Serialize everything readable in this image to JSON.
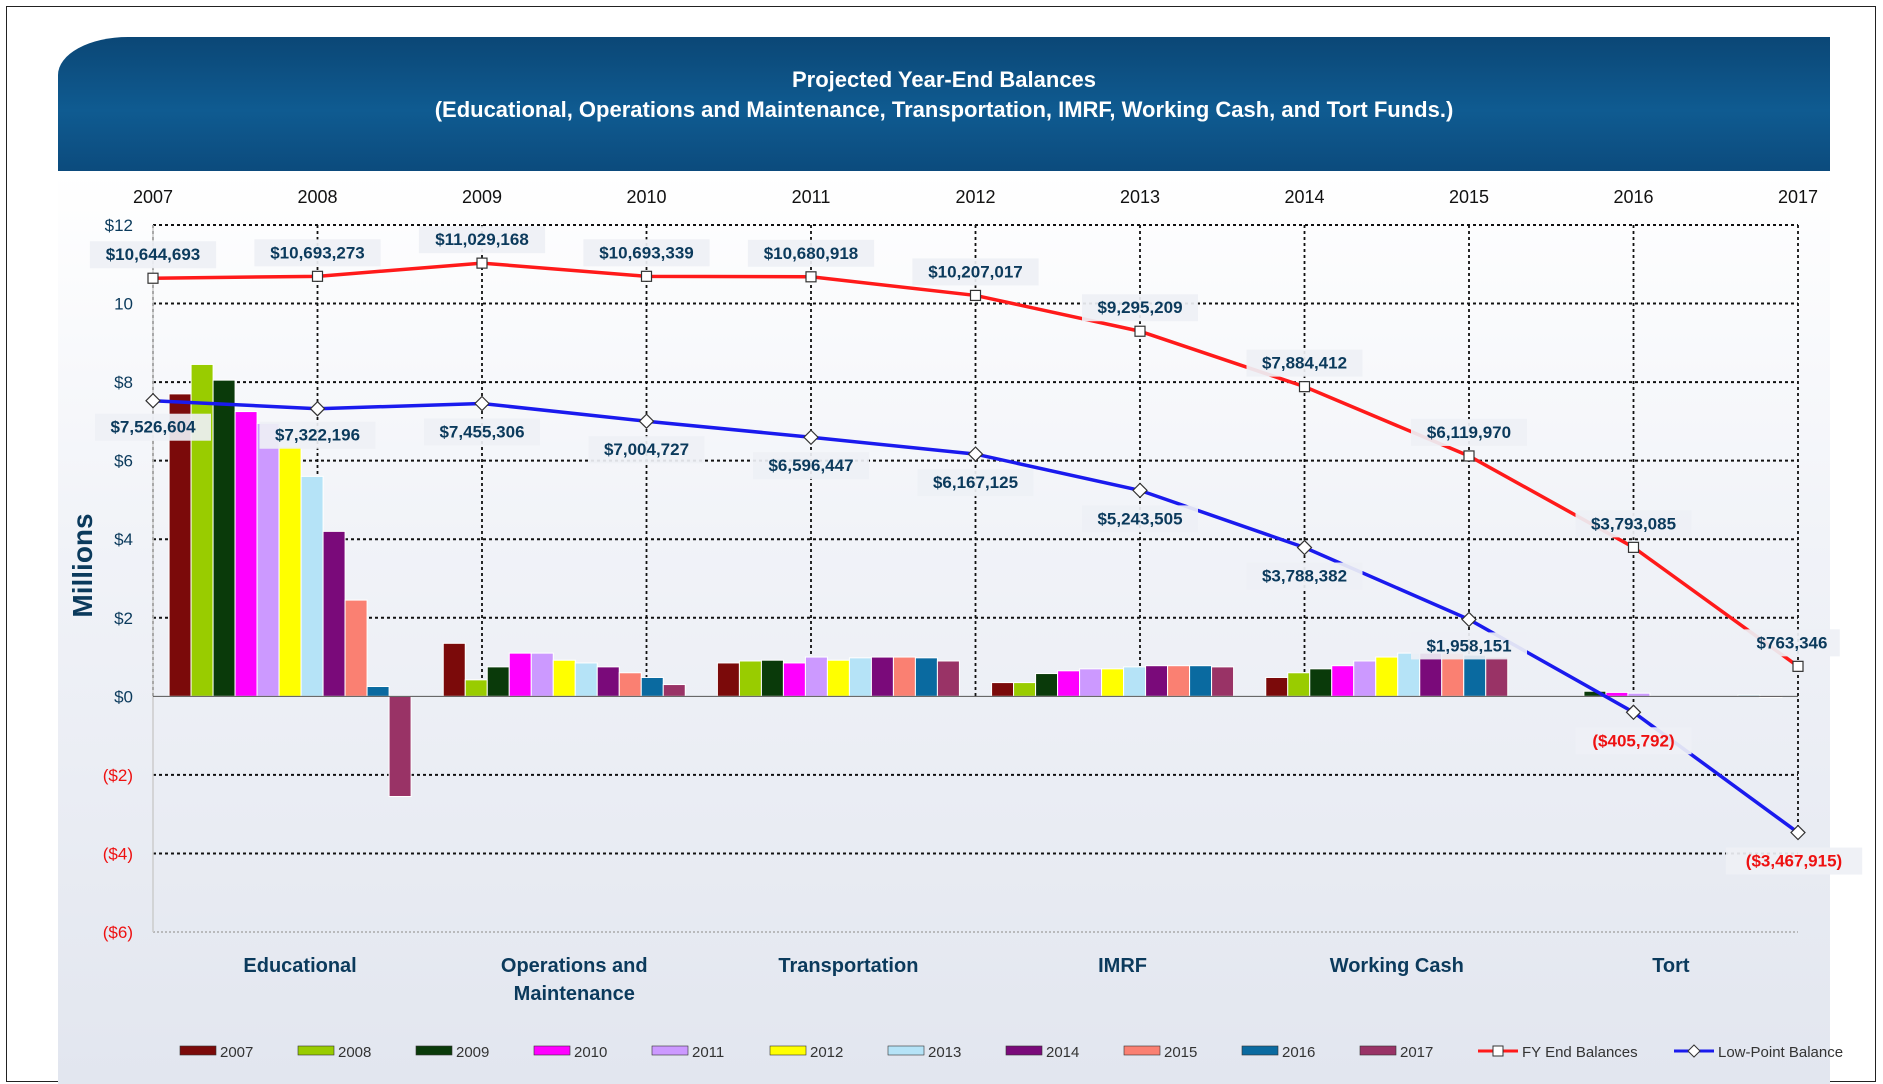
{
  "chart_data": {
    "type": "bar",
    "title": "Projected Year-End Balances",
    "subtitle": "(Educational, Operations and Maintenance, Transportation, IMRF, Working Cash, and Tort Funds.)",
    "ylabel": "Millions",
    "ylim": [
      -6,
      12
    ],
    "yticks": [
      {
        "value": 12,
        "label": "$12"
      },
      {
        "value": 10,
        "label": "10"
      },
      {
        "value": 8,
        "label": "$8"
      },
      {
        "value": 6,
        "label": "$6"
      },
      {
        "value": 4,
        "label": "$4"
      },
      {
        "value": 2,
        "label": "$2"
      },
      {
        "value": 0,
        "label": "$0"
      },
      {
        "value": -2,
        "label": "($2)"
      },
      {
        "value": -4,
        "label": "($4)"
      },
      {
        "value": -6,
        "label": "($6)"
      }
    ],
    "grid": true,
    "legend_position": "bottom",
    "categories": [
      {
        "label": "Educational"
      },
      {
        "label": "Operations and",
        "label2": "Maintenance"
      },
      {
        "label": "Transportation"
      },
      {
        "label": "IMRF"
      },
      {
        "label": "Working Cash"
      },
      {
        "label": "Tort"
      }
    ],
    "series": [
      {
        "name": "2007",
        "color": "#7b0a0a",
        "values": [
          7.7,
          1.35,
          0.85,
          0.35,
          0.48,
          0.0
        ]
      },
      {
        "name": "2008",
        "color": "#99cc00",
        "values": [
          8.45,
          0.42,
          0.9,
          0.35,
          0.6,
          0.0
        ]
      },
      {
        "name": "2009",
        "color": "#0a3a0a",
        "values": [
          8.05,
          0.75,
          0.92,
          0.58,
          0.7,
          0.13
        ]
      },
      {
        "name": "2010",
        "color": "#ff00ff",
        "values": [
          7.25,
          1.1,
          0.85,
          0.65,
          0.78,
          0.1
        ]
      },
      {
        "name": "2011",
        "color": "#cc99ff",
        "values": [
          6.95,
          1.1,
          1.0,
          0.7,
          0.9,
          0.08
        ]
      },
      {
        "name": "2012",
        "color": "#ffff00",
        "values": [
          6.35,
          0.92,
          0.92,
          0.7,
          1.0,
          0.0
        ]
      },
      {
        "name": "2013",
        "color": "#b5e3f7",
        "values": [
          5.6,
          0.85,
          0.98,
          0.75,
          1.1,
          0.0
        ]
      },
      {
        "name": "2014",
        "color": "#7a0a7a",
        "values": [
          4.2,
          0.75,
          1.0,
          0.78,
          1.1,
          0.0
        ]
      },
      {
        "name": "2015",
        "color": "#fa8072",
        "values": [
          2.45,
          0.6,
          1.0,
          0.78,
          1.1,
          0.0
        ]
      },
      {
        "name": "2016",
        "color": "#0a6aa0",
        "values": [
          0.25,
          0.48,
          0.98,
          0.78,
          1.05,
          0.03
        ]
      },
      {
        "name": "2017",
        "color": "#993366",
        "values": [
          -2.55,
          0.3,
          0.9,
          0.75,
          1.0,
          -0.03
        ]
      }
    ],
    "lines": {
      "years": [
        "2007",
        "2008",
        "2009",
        "2010",
        "2011",
        "2012",
        "2013",
        "2014",
        "2015",
        "2016",
        "2017"
      ],
      "fy_end": {
        "name": "FY End Balances",
        "color": "#ff1a1a",
        "values": [
          10.644693,
          10.693273,
          11.029168,
          10.693339,
          10.680918,
          10.207017,
          9.295209,
          7.884412,
          6.11997,
          3.793085,
          0.763346
        ],
        "labels": [
          "$10,644,693",
          "$10,693,273",
          "$11,029,168",
          "$10,693,339",
          "$10,680,918",
          "$10,207,017",
          "$9,295,209",
          "$7,884,412",
          "$6,119,970",
          "$3,793,085",
          "$763,346"
        ]
      },
      "low_point": {
        "name": "Low-Point Balance",
        "color": "#1a1aee",
        "values": [
          7.526604,
          7.322196,
          7.455306,
          7.004727,
          6.596447,
          6.167125,
          5.243505,
          3.788382,
          1.958151,
          -0.405792,
          -3.467915
        ],
        "labels": [
          "$7,526,604",
          "$7,322,196",
          "$7,455,306",
          "$7,004,727",
          "$6,596,447",
          "$6,167,125",
          "$5,243,505",
          "$3,788,382",
          "$1,958,151",
          "($405,792)",
          "($3,467,915)"
        ]
      }
    },
    "colors": {
      "header": "#0c4f83",
      "label_text": "#0b3a5c",
      "negative_text": "#ee1111",
      "positive_axis_text": "#0b3a5c"
    }
  }
}
